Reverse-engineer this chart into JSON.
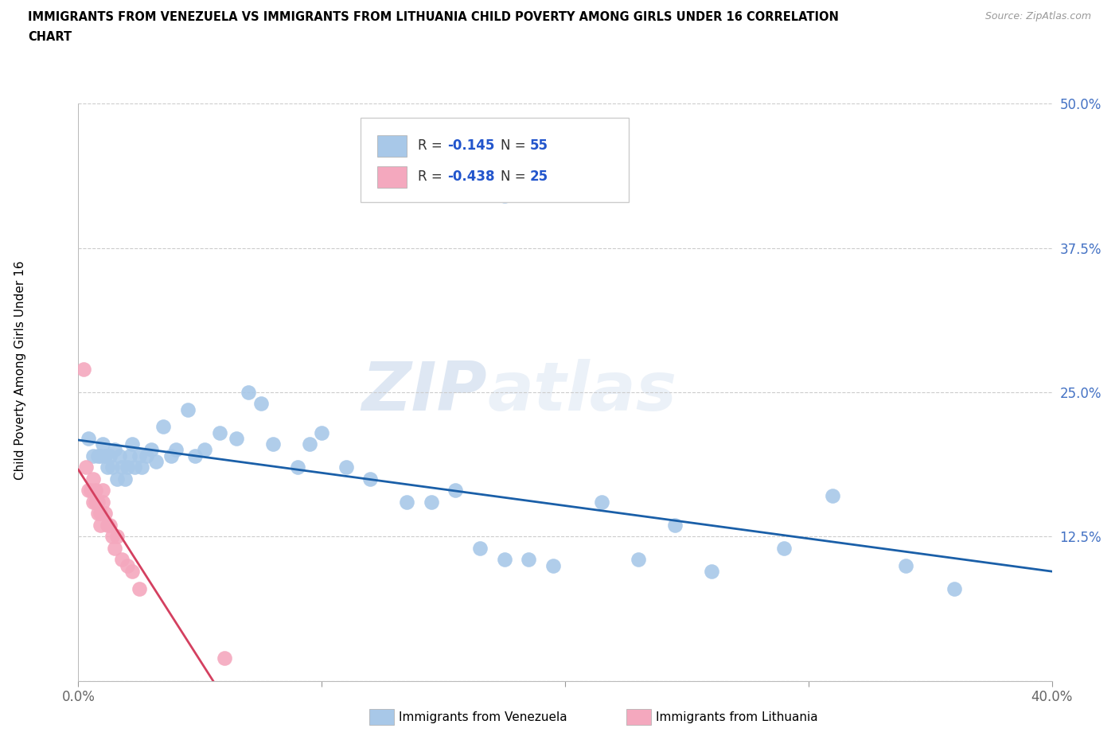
{
  "title_line1": "IMMIGRANTS FROM VENEZUELA VS IMMIGRANTS FROM LITHUANIA CHILD POVERTY AMONG GIRLS UNDER 16 CORRELATION",
  "title_line2": "CHART",
  "source": "Source: ZipAtlas.com",
  "ylabel": "Child Poverty Among Girls Under 16",
  "xlabel_venezuela": "Immigrants from Venezuela",
  "xlabel_lithuania": "Immigrants from Lithuania",
  "watermark_zip": "ZIP",
  "watermark_atlas": "atlas",
  "r_venezuela": -0.145,
  "n_venezuela": 55,
  "r_lithuania": -0.438,
  "n_lithuania": 25,
  "color_venezuela": "#a8c8e8",
  "color_lithuania": "#f4a8be",
  "trendline_venezuela_color": "#1a5fa8",
  "trendline_lithuania_color": "#d44060",
  "xlim": [
    0.0,
    0.4
  ],
  "ylim": [
    0.0,
    0.5
  ],
  "xticks": [
    0.0,
    0.1,
    0.2,
    0.3,
    0.4
  ],
  "yticks": [
    0.0,
    0.125,
    0.25,
    0.375,
    0.5
  ],
  "xtick_labels": [
    "0.0%",
    "",
    "",
    "",
    "40.0%"
  ],
  "ytick_labels": [
    "",
    "12.5%",
    "25.0%",
    "37.5%",
    "50.0%"
  ],
  "venezuela_x": [
    0.004,
    0.006,
    0.008,
    0.009,
    0.01,
    0.011,
    0.012,
    0.013,
    0.014,
    0.015,
    0.016,
    0.017,
    0.018,
    0.019,
    0.02,
    0.021,
    0.022,
    0.023,
    0.025,
    0.026,
    0.028,
    0.03,
    0.032,
    0.035,
    0.038,
    0.04,
    0.045,
    0.048,
    0.052,
    0.058,
    0.065,
    0.07,
    0.075,
    0.08,
    0.09,
    0.095,
    0.1,
    0.11,
    0.12,
    0.135,
    0.145,
    0.155,
    0.165,
    0.175,
    0.185,
    0.195,
    0.215,
    0.23,
    0.245,
    0.26,
    0.29,
    0.31,
    0.34,
    0.36,
    0.175
  ],
  "venezuela_y": [
    0.21,
    0.195,
    0.195,
    0.195,
    0.205,
    0.195,
    0.185,
    0.195,
    0.185,
    0.2,
    0.175,
    0.195,
    0.185,
    0.175,
    0.185,
    0.195,
    0.205,
    0.185,
    0.195,
    0.185,
    0.195,
    0.2,
    0.19,
    0.22,
    0.195,
    0.2,
    0.235,
    0.195,
    0.2,
    0.215,
    0.21,
    0.25,
    0.24,
    0.205,
    0.185,
    0.205,
    0.215,
    0.185,
    0.175,
    0.155,
    0.155,
    0.165,
    0.115,
    0.105,
    0.105,
    0.1,
    0.155,
    0.105,
    0.135,
    0.095,
    0.115,
    0.16,
    0.1,
    0.08,
    0.42
  ],
  "lithuania_x": [
    0.002,
    0.003,
    0.004,
    0.005,
    0.006,
    0.006,
    0.007,
    0.007,
    0.008,
    0.008,
    0.009,
    0.009,
    0.01,
    0.01,
    0.011,
    0.012,
    0.013,
    0.014,
    0.015,
    0.016,
    0.018,
    0.02,
    0.022,
    0.025,
    0.06
  ],
  "lithuania_y": [
    0.27,
    0.185,
    0.165,
    0.165,
    0.155,
    0.175,
    0.155,
    0.165,
    0.145,
    0.155,
    0.145,
    0.135,
    0.155,
    0.165,
    0.145,
    0.135,
    0.135,
    0.125,
    0.115,
    0.125,
    0.105,
    0.1,
    0.095,
    0.08,
    0.02
  ]
}
